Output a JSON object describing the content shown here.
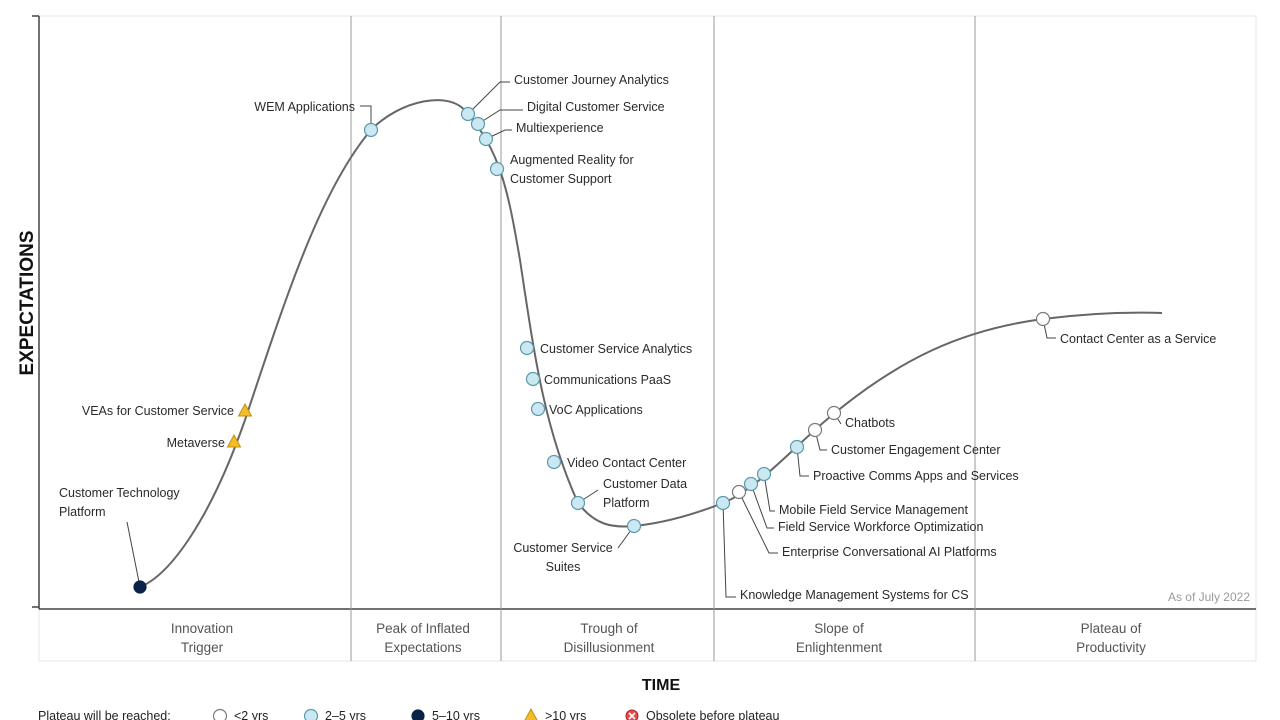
{
  "axes": {
    "y_title": "EXPECTATIONS",
    "x_title": "TIME"
  },
  "as_of": "As of July 2022",
  "phases": [
    [
      "Innovation",
      "Trigger"
    ],
    [
      "Peak of Inflated",
      "Expectations"
    ],
    [
      "Trough of",
      "Disillusionment"
    ],
    [
      "Slope of",
      "Enlightenment"
    ],
    [
      "Plateau of",
      "Productivity"
    ]
  ],
  "legend": {
    "title": "Plateau will be reached:",
    "items": [
      {
        "label": "<2 yrs",
        "status": "lt2"
      },
      {
        "label": "2–5 yrs",
        "status": "2to5"
      },
      {
        "label": "5–10 yrs",
        "status": "5to10"
      },
      {
        "label": ">10 yrs",
        "status": "gt10"
      },
      {
        "label": "Obsolete before plateau",
        "status": "obsolete"
      }
    ]
  },
  "colors": {
    "lt2": "#ffffff",
    "2to5": "#c9e8f2",
    "5to10": "#0b2347",
    "gt10": "#f2bd28",
    "obsolete": "#e74a4a",
    "curve": "#666666",
    "divider": "#9a9a9a"
  },
  "technologies": [
    {
      "name": [
        "Customer Technology",
        "Platform"
      ],
      "status": "5to10"
    },
    {
      "name": [
        "Metaverse"
      ],
      "status": "gt10"
    },
    {
      "name": [
        "VEAs for Customer Service"
      ],
      "status": "gt10"
    },
    {
      "name": [
        "WEM Applications"
      ],
      "status": "2to5"
    },
    {
      "name": [
        "Customer Journey Analytics"
      ],
      "status": "2to5"
    },
    {
      "name": [
        "Digital Customer Service"
      ],
      "status": "2to5"
    },
    {
      "name": [
        "Multiexperience"
      ],
      "status": "2to5"
    },
    {
      "name": [
        "Augmented Reality for",
        "Customer Support"
      ],
      "status": "2to5"
    },
    {
      "name": [
        "Customer Service Analytics"
      ],
      "status": "2to5"
    },
    {
      "name": [
        "Communications PaaS"
      ],
      "status": "2to5"
    },
    {
      "name": [
        "VoC Applications"
      ],
      "status": "2to5"
    },
    {
      "name": [
        "Video Contact Center"
      ],
      "status": "2to5"
    },
    {
      "name": [
        "Customer Data",
        "Platform"
      ],
      "status": "2to5"
    },
    {
      "name": [
        "Customer Service",
        "Suites"
      ],
      "status": "2to5"
    },
    {
      "name": [
        "Knowledge Management Systems for CS"
      ],
      "status": "2to5"
    },
    {
      "name": [
        "Enterprise Conversational AI Platforms"
      ],
      "status": "lt2"
    },
    {
      "name": [
        "Field Service Workforce Optimization"
      ],
      "status": "2to5"
    },
    {
      "name": [
        "Mobile Field Service Management"
      ],
      "status": "2to5"
    },
    {
      "name": [
        "Proactive Comms Apps and Services"
      ],
      "status": "2to5"
    },
    {
      "name": [
        "Customer Engagement Center"
      ],
      "status": "lt2"
    },
    {
      "name": [
        "Chatbots"
      ],
      "status": "lt2"
    },
    {
      "name": [
        "Contact Center as a Service"
      ],
      "status": "lt2"
    }
  ]
}
